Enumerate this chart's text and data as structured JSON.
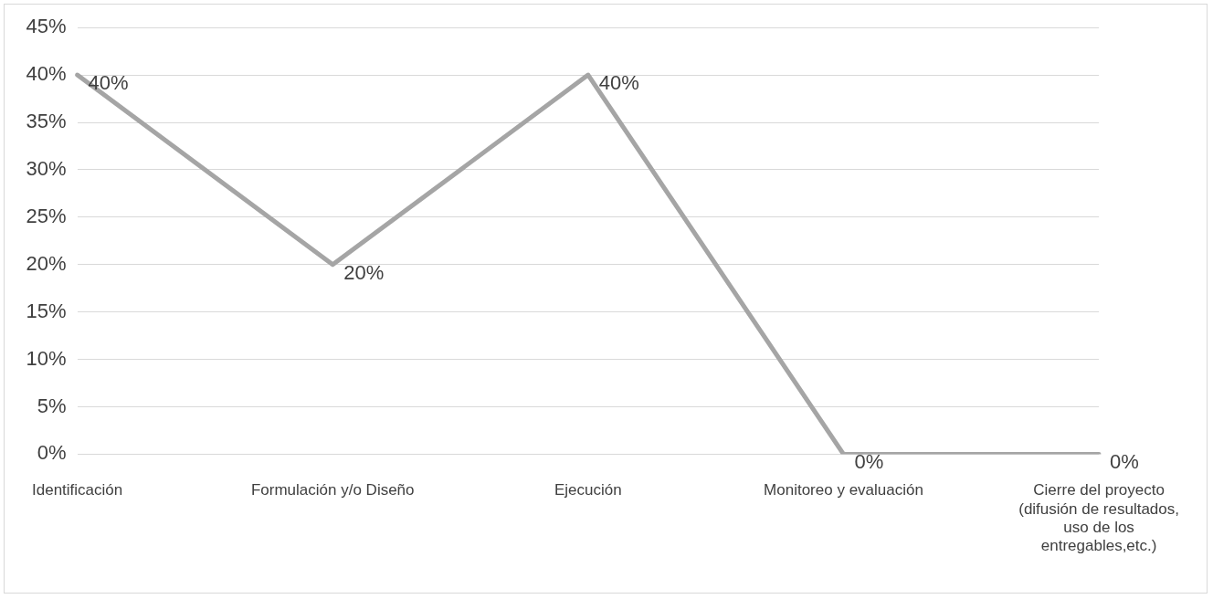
{
  "chart_data": {
    "type": "line",
    "categories": [
      "Identificación",
      "Formulación y/o Diseño",
      "Ejecución",
      "Monitoreo y evaluación",
      "Cierre del proyecto (difusión de resultados, uso de los entregables,etc.)"
    ],
    "values": [
      40,
      20,
      40,
      0,
      0
    ],
    "value_labels": [
      "40%",
      "20%",
      "40%",
      "0%",
      "0%"
    ],
    "color": "#a5a5a5",
    "ylim": [
      0,
      45
    ],
    "yticks": [
      {
        "value": 0,
        "label": "0%"
      },
      {
        "value": 5,
        "label": "5%"
      },
      {
        "value": 10,
        "label": "10%"
      },
      {
        "value": 15,
        "label": "15%"
      },
      {
        "value": 20,
        "label": "20%"
      },
      {
        "value": 25,
        "label": "25%"
      },
      {
        "value": 30,
        "label": "30%"
      },
      {
        "value": 35,
        "label": "35%"
      },
      {
        "value": 40,
        "label": "40%"
      },
      {
        "value": 45,
        "label": "45%"
      }
    ],
    "grid": "y",
    "legend": false,
    "marker": "none",
    "line_style": "solid"
  }
}
